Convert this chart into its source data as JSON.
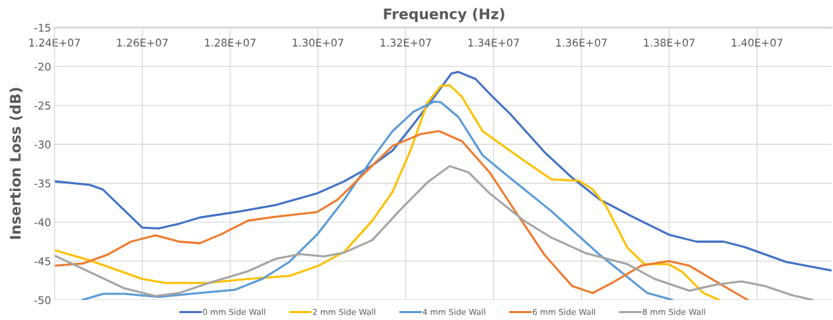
{
  "chart_data": {
    "type": "line",
    "title": "Frequency (Hz)",
    "ylabel": "Insertion Loss (dB)",
    "xlim": [
      12400000,
      14170000
    ],
    "ylim": [
      -50,
      -15
    ],
    "xticks": [
      {
        "value": 12400000,
        "label": "1.24E+07"
      },
      {
        "value": 12600000,
        "label": "1.26E+07"
      },
      {
        "value": 12800000,
        "label": "1.28E+07"
      },
      {
        "value": 13000000,
        "label": "1.30E+07"
      },
      {
        "value": 13200000,
        "label": "1.32E+07"
      },
      {
        "value": 13400000,
        "label": "1.34E+07"
      },
      {
        "value": 13600000,
        "label": "1.36E+07"
      },
      {
        "value": 13800000,
        "label": "1.38E+07"
      },
      {
        "value": 14000000,
        "label": "1.40E+07"
      }
    ],
    "yticks": [
      -50,
      -45,
      -40,
      -35,
      -30,
      -25,
      -20,
      -15
    ],
    "grid": true,
    "legend": "bottom",
    "marker": "none",
    "line_style": "solid",
    "series": [
      {
        "name": "0 mm Side Wall",
        "color": "#4472c4",
        "x": [
          12400000,
          12480000,
          12510000,
          12600000,
          12637000,
          12684000,
          12731000,
          12825000,
          12904000,
          12998000,
          13060000,
          13124000,
          13170000,
          13218000,
          13265000,
          13304000,
          13320000,
          13359000,
          13398000,
          13438000,
          13516000,
          13579000,
          13642000,
          13720000,
          13799000,
          13862000,
          13924000,
          13972000,
          14066000,
          14168000
        ],
        "values": [
          -34.75,
          -35.2,
          -35.8,
          -40.7,
          -40.8,
          -40.2,
          -39.4,
          -38.6,
          -37.8,
          -36.3,
          -34.75,
          -32.7,
          -30.8,
          -27.4,
          -23.9,
          -20.9,
          -20.7,
          -21.6,
          -23.9,
          -26.1,
          -31.0,
          -34.3,
          -37.1,
          -39.4,
          -41.6,
          -42.5,
          -42.5,
          -43.2,
          -45.1,
          -46.2
        ]
      },
      {
        "name": "2 mm Side Wall",
        "color": "#ffc000",
        "x": [
          12400000,
          12480000,
          12600000,
          12652000,
          12747000,
          12841000,
          12935000,
          13001000,
          13060000,
          13124000,
          13170000,
          13210000,
          13249000,
          13280000,
          13300000,
          13328000,
          13375000,
          13422000,
          13485000,
          13532000,
          13595000,
          13626000,
          13657000,
          13705000,
          13744000,
          13799000,
          13830000,
          13878000,
          13914000
        ],
        "values": [
          -43.6,
          -44.9,
          -47.3,
          -47.8,
          -47.8,
          -47.3,
          -46.9,
          -45.6,
          -43.8,
          -39.8,
          -36.1,
          -30.9,
          -24.7,
          -22.5,
          -22.4,
          -23.9,
          -28.3,
          -30.2,
          -32.7,
          -34.5,
          -34.7,
          -35.8,
          -38.0,
          -43.3,
          -45.4,
          -45.4,
          -46.4,
          -49.1,
          -50
        ]
      },
      {
        "name": "4 mm Side Wall",
        "color": "#5b9bd5",
        "x": [
          12463000,
          12511000,
          12559000,
          12637000,
          12731000,
          12810000,
          12873000,
          12935000,
          12998000,
          13060000,
          13124000,
          13170000,
          13218000,
          13265000,
          13280000,
          13320000,
          13375000,
          13422000,
          13532000,
          13642000,
          13750000,
          13808000
        ],
        "values": [
          -50,
          -49.2,
          -49.2,
          -49.6,
          -49.1,
          -48.7,
          -47.3,
          -45.1,
          -41.6,
          -37.1,
          -31.8,
          -28.3,
          -25.8,
          -24.5,
          -24.6,
          -26.5,
          -31.4,
          -33.6,
          -38.6,
          -44.2,
          -49.1,
          -50
        ]
      },
      {
        "name": "6 mm Side Wall",
        "color": "#ed7d31",
        "x": [
          12400000,
          12465000,
          12520000,
          12574000,
          12630000,
          12684000,
          12731000,
          12778000,
          12841000,
          12904000,
          12998000,
          13045000,
          13108000,
          13170000,
          13233000,
          13276000,
          13328000,
          13391000,
          13453000,
          13516000,
          13579000,
          13626000,
          13673000,
          13736000,
          13799000,
          13846000,
          13909000,
          13979000
        ],
        "values": [
          -45.6,
          -45.3,
          -44.2,
          -42.5,
          -41.7,
          -42.5,
          -42.7,
          -41.6,
          -39.8,
          -39.3,
          -38.7,
          -37.1,
          -33.6,
          -30.2,
          -28.7,
          -28.3,
          -29.6,
          -33.6,
          -38.9,
          -44.2,
          -48.2,
          -49.1,
          -47.7,
          -45.6,
          -45.0,
          -45.6,
          -47.7,
          -50
        ]
      },
      {
        "name": "8 mm Side Wall",
        "color": "#a5a5a5",
        "x": [
          12400000,
          12480000,
          12559000,
          12630000,
          12684000,
          12747000,
          12841000,
          12904000,
          12959000,
          13014000,
          13060000,
          13124000,
          13186000,
          13249000,
          13300000,
          13343000,
          13391000,
          13469000,
          13532000,
          13611000,
          13705000,
          13767000,
          13846000,
          13909000,
          13964000,
          14018000,
          14081000,
          14128000
        ],
        "values": [
          -44.3,
          -46.4,
          -48.5,
          -49.5,
          -49.1,
          -47.9,
          -46.3,
          -44.7,
          -44.1,
          -44.4,
          -43.9,
          -42.3,
          -38.5,
          -34.9,
          -32.8,
          -33.6,
          -36.3,
          -39.8,
          -42.0,
          -44.0,
          -45.4,
          -47.3,
          -48.8,
          -48.0,
          -47.6,
          -48.2,
          -49.4,
          -50
        ]
      }
    ]
  }
}
